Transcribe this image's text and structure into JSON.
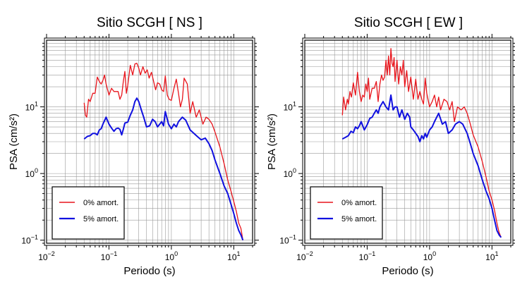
{
  "colors": {
    "undamped": "#e8141b",
    "damped": "#1010e0",
    "grid": "#9a9a9a",
    "frame": "#000000"
  },
  "chart_data": [
    {
      "type": "line",
      "title": "Sitio SCGH [ NS ]",
      "xlabel": "Periodo (s)",
      "ylabel": "PSA (cm/s²)",
      "xscale": "log",
      "yscale": "log",
      "xlim": [
        0.01,
        20
      ],
      "ylim": [
        0.09,
        100
      ],
      "grid": true,
      "legend_position": "bottom-left",
      "x_ticks": [
        {
          "base": "10",
          "exp": "−2"
        },
        {
          "base": "10",
          "exp": "−1"
        },
        {
          "base": "10",
          "exp": "0"
        },
        {
          "base": "10",
          "exp": "1"
        }
      ],
      "y_ticks": [
        {
          "value": 0.1,
          "base": "10",
          "exp": "−1"
        },
        {
          "value": 1,
          "base": "10",
          "exp": "0"
        },
        {
          "value": 10,
          "base": "10",
          "exp": "1"
        }
      ],
      "series": [
        {
          "name": "0% amort.",
          "color": "#e8141b",
          "x": [
            0.04,
            0.042,
            0.044,
            0.047,
            0.05,
            0.055,
            0.06,
            0.065,
            0.07,
            0.075,
            0.08,
            0.085,
            0.09,
            0.095,
            0.1,
            0.11,
            0.12,
            0.13,
            0.14,
            0.15,
            0.16,
            0.17,
            0.18,
            0.19,
            0.2,
            0.22,
            0.24,
            0.26,
            0.28,
            0.3,
            0.32,
            0.35,
            0.38,
            0.41,
            0.44,
            0.48,
            0.52,
            0.56,
            0.6,
            0.65,
            0.7,
            0.75,
            0.8,
            0.86,
            0.92,
            1.0,
            1.1,
            1.2,
            1.3,
            1.4,
            1.5,
            1.6,
            1.8,
            2.0,
            2.2,
            2.5,
            2.8,
            3.2,
            3.6,
            4.0,
            4.5,
            5.0,
            6.0,
            7.0,
            8.0,
            9.0,
            10.0,
            11.0,
            12.0,
            13.0,
            14.0
          ],
          "y": [
            11.5,
            7.5,
            7,
            13,
            12,
            16,
            16,
            28,
            24,
            22,
            25,
            30,
            22,
            18,
            15,
            19,
            17,
            17,
            17,
            13,
            15,
            24,
            34,
            16,
            21,
            42,
            30,
            44,
            45,
            38,
            30,
            40,
            32,
            36,
            27,
            33,
            24,
            18,
            23,
            22,
            18,
            17,
            29,
            15,
            13,
            12.5,
            19,
            26,
            16,
            10,
            13,
            27,
            22,
            8,
            12,
            7,
            9,
            5.5,
            7,
            6.5,
            5.5,
            4.2,
            2.5,
            1.4,
            0.8,
            0.55,
            0.38,
            0.27,
            0.18,
            0.15,
            0.1
          ]
        },
        {
          "name": "5% amort.",
          "color": "#1010e0",
          "x": [
            0.04,
            0.045,
            0.05,
            0.055,
            0.06,
            0.065,
            0.07,
            0.075,
            0.08,
            0.09,
            0.1,
            0.11,
            0.12,
            0.13,
            0.14,
            0.15,
            0.16,
            0.17,
            0.18,
            0.2,
            0.22,
            0.24,
            0.26,
            0.28,
            0.3,
            0.33,
            0.36,
            0.4,
            0.45,
            0.5,
            0.55,
            0.6,
            0.65,
            0.7,
            0.75,
            0.8,
            0.9,
            1.0,
            1.1,
            1.2,
            1.3,
            1.5,
            1.7,
            2.0,
            2.3,
            2.6,
            3.0,
            3.5,
            4.0,
            4.5,
            5.0,
            6.0,
            7.0,
            8.0,
            9.0,
            10.0,
            11.0,
            12.0,
            13.0,
            14.0
          ],
          "y": [
            3.3,
            3.6,
            3.7,
            4,
            4,
            3.8,
            4.5,
            4.7,
            5.5,
            7,
            5.5,
            4.8,
            4.3,
            4.7,
            4.8,
            4.6,
            3.8,
            4.6,
            5.7,
            5.9,
            7.5,
            9,
            12,
            13.5,
            12,
            9,
            7,
            5,
            5.2,
            6.5,
            6,
            5,
            5.5,
            6,
            5.2,
            8.5,
            5.5,
            4.7,
            5.5,
            5,
            6,
            7,
            6.3,
            4.5,
            4,
            3.6,
            3.2,
            3.4,
            2.8,
            2.2,
            1.6,
            1.0,
            0.65,
            0.5,
            0.35,
            0.25,
            0.18,
            0.14,
            0.12,
            0.1
          ]
        }
      ]
    },
    {
      "type": "line",
      "title": "Sitio SCGH [ EW ]",
      "xlabel": "Periodo (s)",
      "ylabel": "PSA (cm/s²)",
      "xscale": "log",
      "yscale": "log",
      "xlim": [
        0.01,
        20
      ],
      "ylim": [
        0.09,
        100
      ],
      "grid": true,
      "legend_position": "bottom-left",
      "x_ticks": [
        {
          "base": "10",
          "exp": "−2"
        },
        {
          "base": "10",
          "exp": "−1"
        },
        {
          "base": "10",
          "exp": "0"
        },
        {
          "base": "10",
          "exp": "1"
        }
      ],
      "y_ticks": [
        {
          "value": 0.1,
          "base": "10",
          "exp": "−1"
        },
        {
          "value": 1,
          "base": "10",
          "exp": "0"
        },
        {
          "value": 10,
          "base": "10",
          "exp": "1"
        }
      ],
      "series": [
        {
          "name": "0% amort.",
          "color": "#e8141b",
          "x": [
            0.04,
            0.042,
            0.045,
            0.048,
            0.05,
            0.053,
            0.056,
            0.06,
            0.065,
            0.07,
            0.075,
            0.08,
            0.085,
            0.09,
            0.095,
            0.1,
            0.105,
            0.11,
            0.12,
            0.13,
            0.14,
            0.15,
            0.16,
            0.17,
            0.18,
            0.19,
            0.2,
            0.21,
            0.22,
            0.23,
            0.24,
            0.25,
            0.26,
            0.27,
            0.28,
            0.3,
            0.32,
            0.34,
            0.36,
            0.38,
            0.4,
            0.43,
            0.46,
            0.5,
            0.55,
            0.6,
            0.65,
            0.7,
            0.75,
            0.8,
            0.85,
            0.9,
            1.0,
            1.1,
            1.2,
            1.3,
            1.4,
            1.5,
            1.7,
            1.9,
            2.1,
            2.3,
            2.5,
            2.8,
            3.2,
            3.6,
            4.0,
            4.5,
            5.0,
            6.0,
            7.0,
            8.0,
            9.0,
            10.0,
            11.0,
            12.0,
            13.0,
            14.0
          ],
          "y": [
            7.5,
            14,
            9,
            13,
            11,
            17,
            14,
            23,
            15,
            33,
            17,
            12,
            15,
            14,
            22,
            17,
            27,
            13,
            19,
            19,
            24,
            12,
            22,
            30,
            25,
            28,
            50,
            30,
            58,
            30,
            75,
            45,
            40,
            55,
            24,
            50,
            22,
            40,
            30,
            50,
            20,
            35,
            17,
            28,
            13,
            26,
            13,
            17,
            13,
            11,
            27,
            16,
            10,
            12,
            15,
            10,
            14,
            9,
            13,
            12,
            9,
            12,
            6,
            10,
            9,
            10,
            8,
            5.5,
            3.8,
            2.5,
            1.5,
            0.9,
            0.55,
            0.4,
            0.28,
            0.18,
            0.13,
            0.11
          ]
        },
        {
          "name": "5% amort.",
          "color": "#1010e0",
          "x": [
            0.04,
            0.045,
            0.05,
            0.055,
            0.06,
            0.065,
            0.07,
            0.075,
            0.08,
            0.09,
            0.1,
            0.11,
            0.12,
            0.13,
            0.14,
            0.15,
            0.16,
            0.18,
            0.2,
            0.22,
            0.24,
            0.26,
            0.28,
            0.3,
            0.33,
            0.36,
            0.4,
            0.44,
            0.48,
            0.5,
            0.55,
            0.6,
            0.65,
            0.7,
            0.75,
            0.8,
            0.85,
            0.9,
            1.0,
            1.1,
            1.2,
            1.4,
            1.6,
            1.8,
            2.0,
            2.3,
            2.6,
            3.0,
            3.4,
            4.0,
            4.5,
            5.0,
            6.0,
            7.0,
            8.0,
            9.0,
            10.0,
            11.0,
            12.0,
            13.0,
            14.0
          ],
          "y": [
            3.3,
            3.5,
            3.7,
            4.3,
            4.1,
            5,
            4.7,
            5.2,
            6,
            4.5,
            5.4,
            6.7,
            7,
            8,
            9,
            8,
            10,
            12,
            10,
            9,
            15,
            9,
            10,
            10,
            7,
            9,
            6.5,
            8,
            7,
            5,
            4.5,
            4,
            3.6,
            3.0,
            3.7,
            3.3,
            4,
            3.5,
            4.5,
            5,
            6,
            8,
            5.5,
            6,
            4,
            4.5,
            5.5,
            6,
            5.5,
            4,
            2.8,
            2.0,
            1.3,
            0.8,
            0.55,
            0.42,
            0.3,
            0.2,
            0.14,
            0.12,
            0.11
          ]
        }
      ]
    }
  ]
}
